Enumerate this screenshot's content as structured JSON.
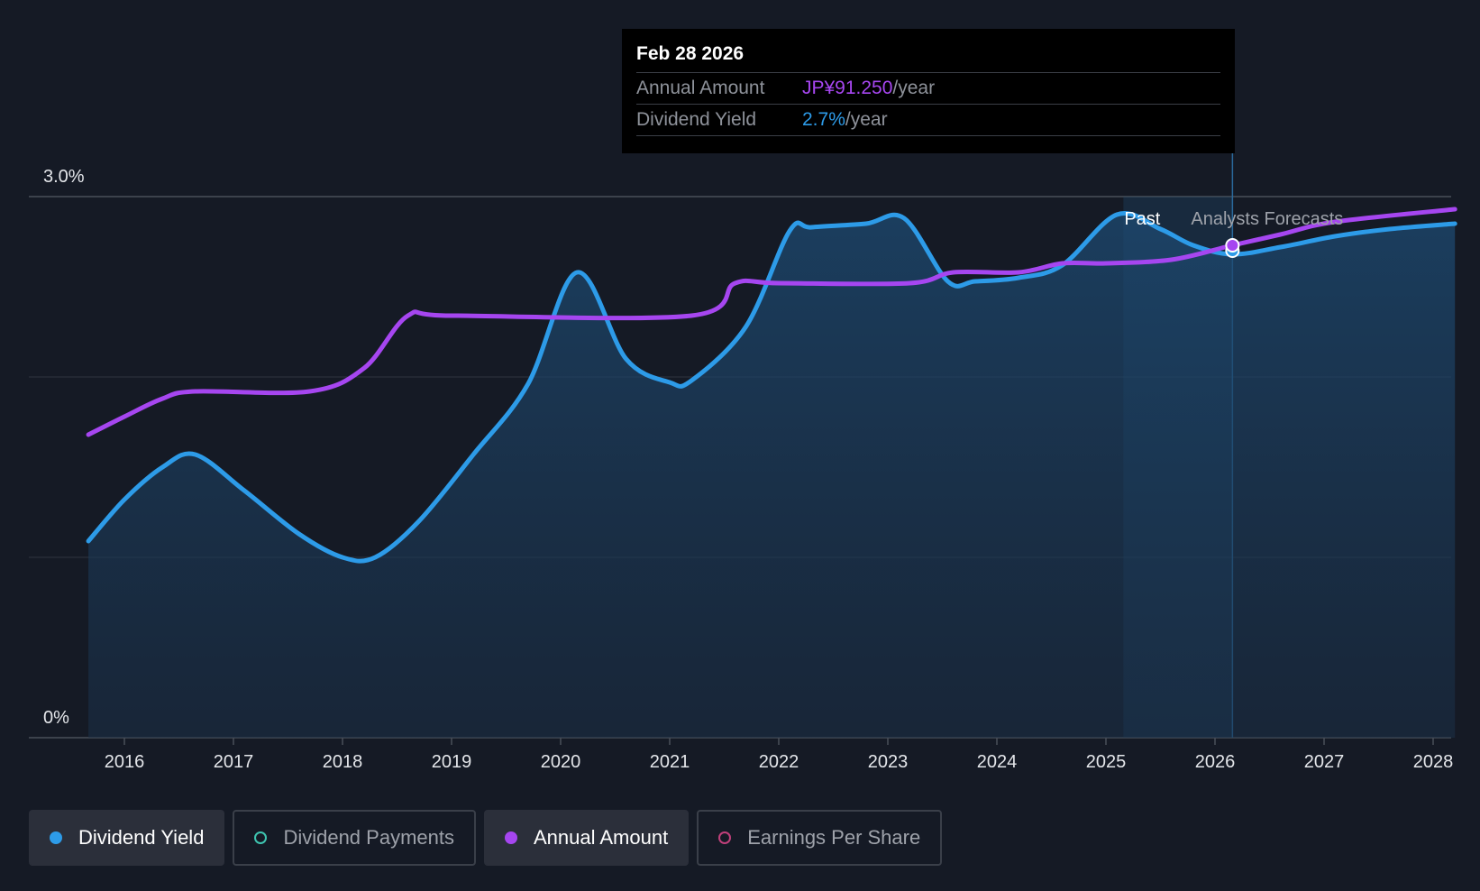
{
  "chart_data": {
    "type": "line",
    "y_axis_labels": {
      "top": "3.0%",
      "bottom": "0%"
    },
    "ylim": [
      0,
      3.0
    ],
    "xlim": [
      2015.5,
      2028.2
    ],
    "x_ticks": [
      2016,
      2017,
      2018,
      2019,
      2020,
      2021,
      2022,
      2023,
      2024,
      2025,
      2026,
      2027,
      2028
    ],
    "x_tick_labels": [
      "2016",
      "2017",
      "2018",
      "2019",
      "2020",
      "2021",
      "2022",
      "2023",
      "2024",
      "2025",
      "2026",
      "2027",
      "2028"
    ],
    "section_labels": {
      "past": "Past",
      "forecast": "Analysts Forecasts"
    },
    "forecast_start": 2026.16,
    "series": [
      {
        "name": "Dividend Yield",
        "color": "#2d9be8",
        "points": [
          [
            2015.67,
            1.09
          ],
          [
            2016.0,
            1.32
          ],
          [
            2016.35,
            1.5
          ],
          [
            2016.65,
            1.57
          ],
          [
            2017.1,
            1.37
          ],
          [
            2017.6,
            1.13
          ],
          [
            2018.0,
            1.0
          ],
          [
            2018.3,
            1.0
          ],
          [
            2018.7,
            1.2
          ],
          [
            2019.2,
            1.57
          ],
          [
            2019.7,
            1.96
          ],
          [
            2020.15,
            2.58
          ],
          [
            2020.6,
            2.1
          ],
          [
            2021.0,
            1.97
          ],
          [
            2021.2,
            1.98
          ],
          [
            2021.7,
            2.28
          ],
          [
            2022.1,
            2.81
          ],
          [
            2022.3,
            2.83
          ],
          [
            2022.8,
            2.85
          ],
          [
            2023.15,
            2.88
          ],
          [
            2023.55,
            2.53
          ],
          [
            2023.8,
            2.53
          ],
          [
            2024.2,
            2.55
          ],
          [
            2024.6,
            2.62
          ],
          [
            2025.1,
            2.9
          ],
          [
            2025.5,
            2.82
          ],
          [
            2025.8,
            2.73
          ],
          [
            2026.16,
            2.68
          ],
          [
            2026.6,
            2.72
          ],
          [
            2027.1,
            2.78
          ],
          [
            2027.6,
            2.82
          ],
          [
            2028.2,
            2.85
          ]
        ]
      },
      {
        "name": "Annual Amount",
        "color": "#a646f0",
        "points": [
          [
            2015.67,
            1.68
          ],
          [
            2016.0,
            1.78
          ],
          [
            2016.35,
            1.88
          ],
          [
            2016.65,
            1.92
          ],
          [
            2017.7,
            1.92
          ],
          [
            2018.2,
            2.05
          ],
          [
            2018.6,
            2.34
          ],
          [
            2019.0,
            2.34
          ],
          [
            2021.2,
            2.34
          ],
          [
            2021.6,
            2.52
          ],
          [
            2022.0,
            2.52
          ],
          [
            2023.2,
            2.52
          ],
          [
            2023.6,
            2.58
          ],
          [
            2024.2,
            2.58
          ],
          [
            2024.6,
            2.63
          ],
          [
            2025.0,
            2.63
          ],
          [
            2025.6,
            2.65
          ],
          [
            2026.16,
            2.73
          ],
          [
            2026.6,
            2.79
          ],
          [
            2027.1,
            2.86
          ],
          [
            2028.2,
            2.93
          ]
        ]
      }
    ],
    "highlight": {
      "date": "Feb 28 2026",
      "x": 2026.16,
      "annual_amount": 91.25,
      "dividend_yield": 2.7
    }
  },
  "tooltip": {
    "date": "Feb 28 2026",
    "annual_label": "Annual Amount",
    "annual_value": "JP¥91.250",
    "annual_unit": "/year",
    "yield_label": "Dividend Yield",
    "yield_value": "2.7%",
    "yield_unit": "/year"
  },
  "legend": [
    {
      "label": "Dividend Yield",
      "color": "#2d9be8",
      "active": true,
      "filled": true
    },
    {
      "label": "Dividend Payments",
      "color": "#3ec4b0",
      "active": false,
      "filled": false
    },
    {
      "label": "Annual Amount",
      "color": "#a646f0",
      "active": true,
      "filled": true
    },
    {
      "label": "Earnings Per Share",
      "color": "#c0407a",
      "active": false,
      "filled": false
    }
  ]
}
